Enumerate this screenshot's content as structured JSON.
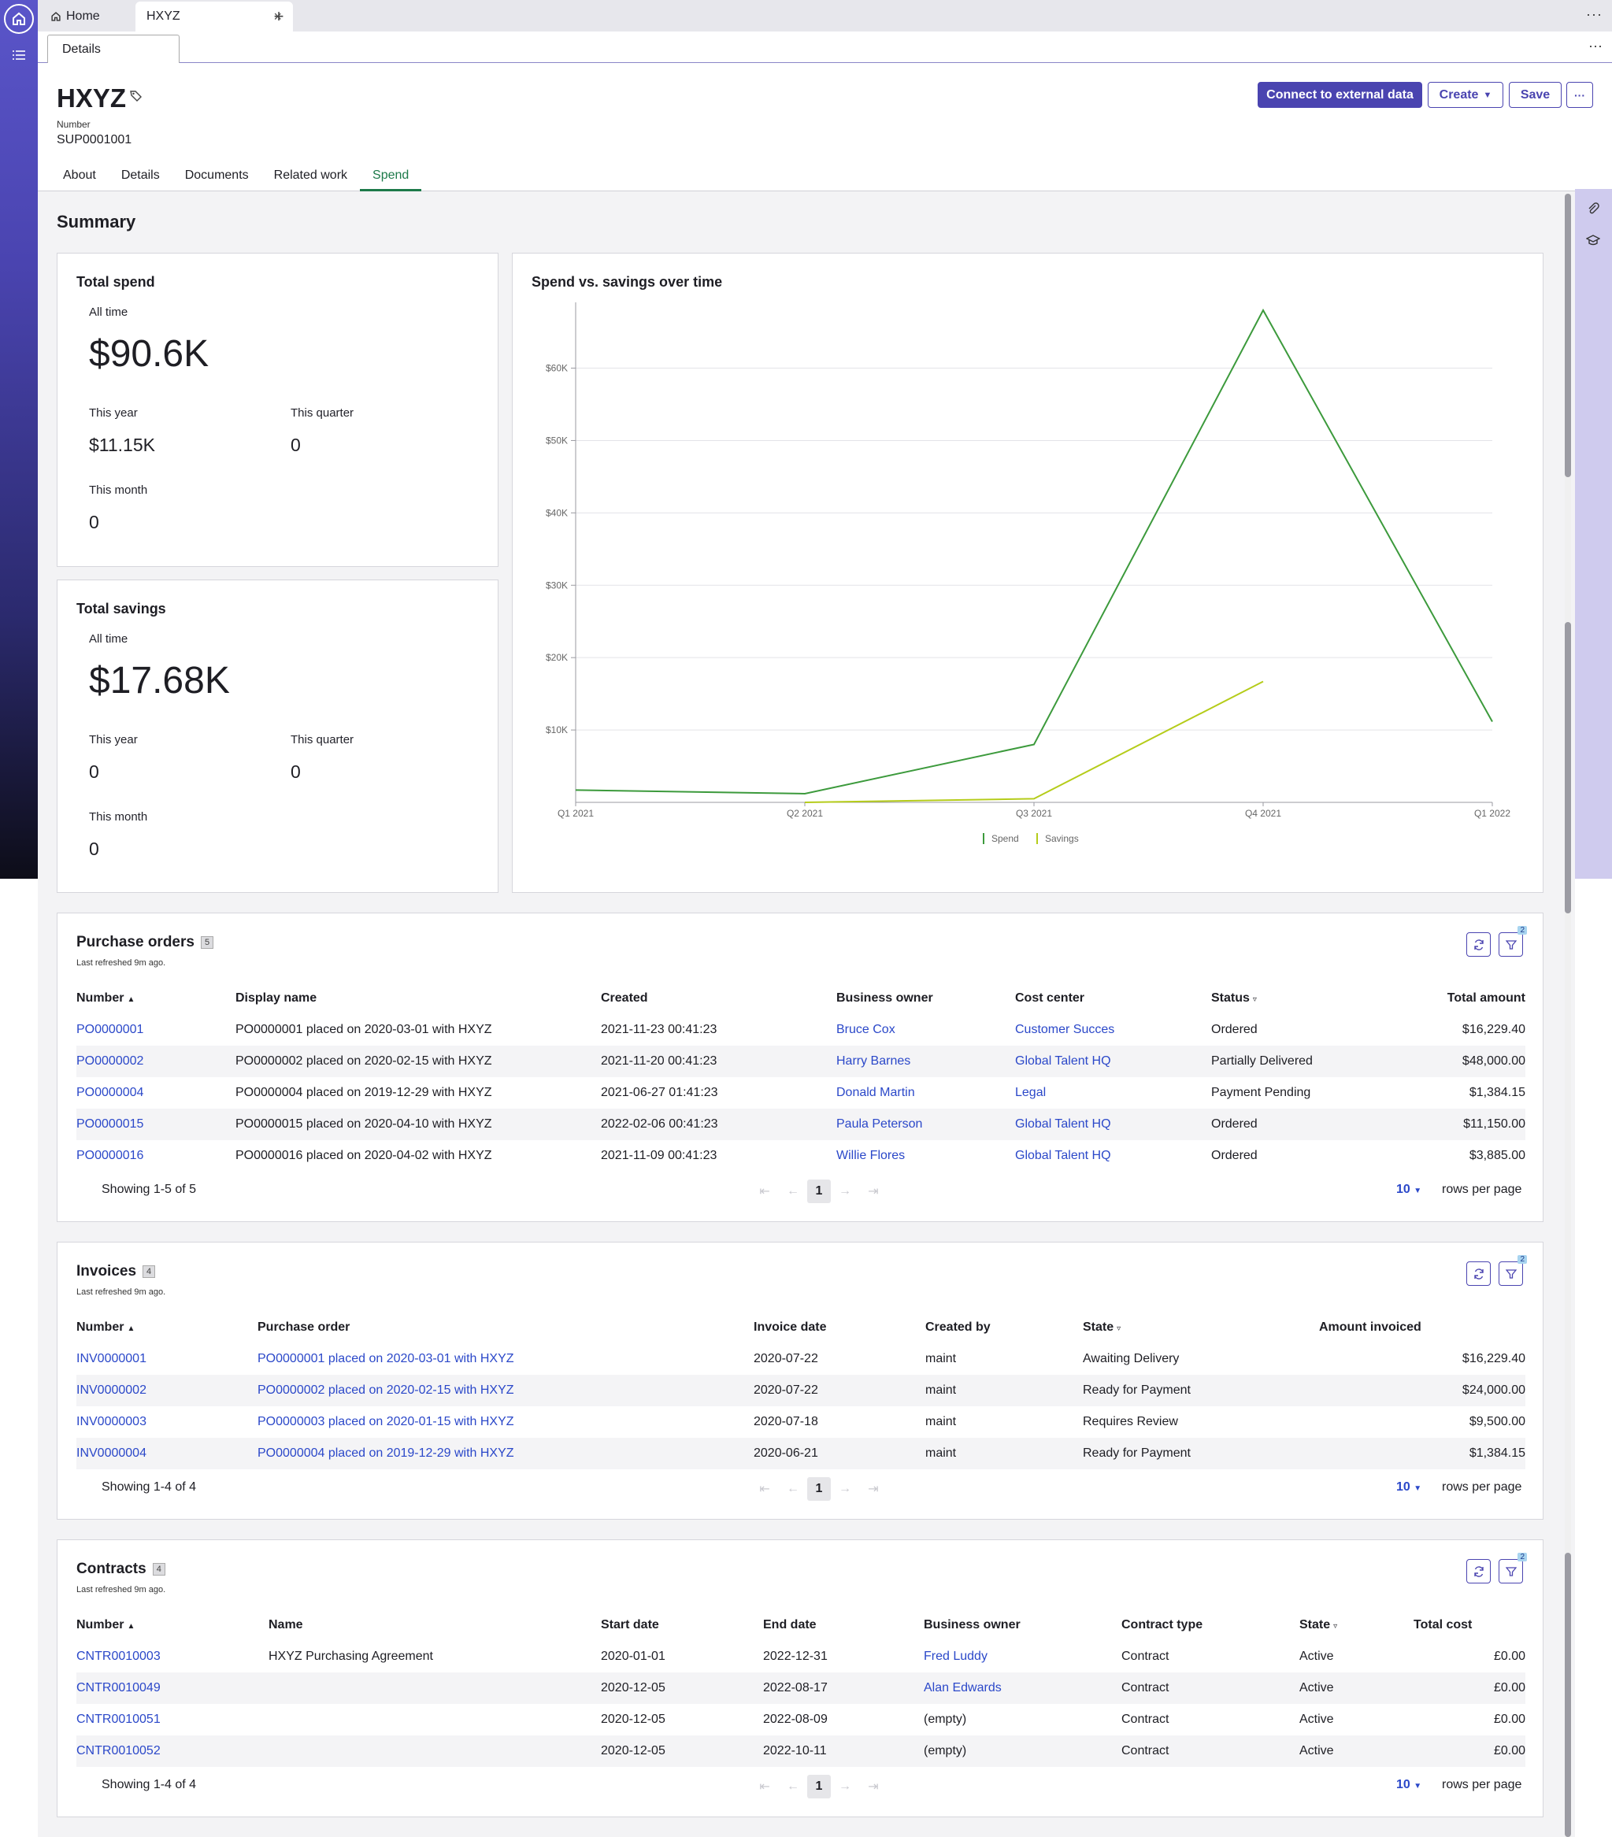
{
  "tabs": {
    "home": "Home",
    "record": "HXYZ",
    "close": "×",
    "add": "+"
  },
  "subtab": "Details",
  "header": {
    "title": "HXYZ",
    "number_label": "Number",
    "number_value": "SUP0001001",
    "buttons": {
      "connect": "Connect to external data",
      "create": "Create",
      "save": "Save",
      "more": "···"
    },
    "page_tabs": [
      "About",
      "Details",
      "Documents",
      "Related work",
      "Spend"
    ]
  },
  "summary_title": "Summary",
  "total_spend": {
    "title": "Total spend",
    "all_time_label": "All time",
    "all_time": "$90.6K",
    "this_year_label": "This year",
    "this_year": "$11.15K",
    "this_quarter_label": "This quarter",
    "this_quarter": "0",
    "this_month_label": "This month",
    "this_month": "0"
  },
  "total_savings": {
    "title": "Total savings",
    "all_time_label": "All time",
    "all_time": "$17.68K",
    "this_year_label": "This year",
    "this_year": "0",
    "this_quarter_label": "This quarter",
    "this_quarter": "0",
    "this_month_label": "This month",
    "this_month": "0"
  },
  "chart_data": {
    "type": "line",
    "title": "Spend vs. savings over time",
    "categories": [
      "Q1 2021",
      "Q2 2021",
      "Q3 2021",
      "Q4 2021",
      "Q1 2022"
    ],
    "y_ticks": [
      "$10K",
      "$20K",
      "$30K",
      "$40K",
      "$50K",
      "$60K"
    ],
    "ylim": [
      0,
      68000
    ],
    "series": [
      {
        "name": "Spend",
        "color": "#3c9a3c",
        "values": [
          1700,
          1200,
          8000,
          68000,
          11150
        ]
      },
      {
        "name": "Savings",
        "color": "#b5cc1a",
        "values": [
          null,
          0,
          500,
          16700,
          null
        ]
      }
    ],
    "legend": "bottom"
  },
  "purchase_orders": {
    "title": "Purchase orders",
    "count": "5",
    "refreshed": "Last refreshed 9m ago.",
    "filter_count": "2",
    "columns": [
      "Number",
      "Display name",
      "Created",
      "Business owner",
      "Cost center",
      "Status",
      "Total amount"
    ],
    "rows": [
      [
        "PO0000001",
        "PO0000001 placed on 2020-03-01 with HXYZ",
        "2021-11-23 00:41:23",
        "Bruce Cox",
        "Customer Succes",
        "Ordered",
        "$16,229.40"
      ],
      [
        "PO0000002",
        "PO0000002 placed on 2020-02-15 with HXYZ",
        "2021-11-20 00:41:23",
        "Harry Barnes",
        "Global Talent HQ",
        "Partially Delivered",
        "$48,000.00"
      ],
      [
        "PO0000004",
        "PO0000004 placed on 2019-12-29 with HXYZ",
        "2021-06-27 01:41:23",
        "Donald Martin",
        "Legal",
        "Payment Pending",
        "$1,384.15"
      ],
      [
        "PO0000015",
        "PO0000015 placed on 2020-04-10 with HXYZ",
        "2022-02-06 00:41:23",
        "Paula Peterson",
        "Global Talent HQ",
        "Ordered",
        "$11,150.00"
      ],
      [
        "PO0000016",
        "PO0000016 placed on 2020-04-02 with HXYZ",
        "2021-11-09 00:41:23",
        "Willie Flores",
        "Global Talent HQ",
        "Ordered",
        "$3,885.00"
      ]
    ],
    "showing": "Showing 1-5 of 5",
    "page": "1",
    "rows_per_page": "10",
    "rows_per_page_label": "rows per page"
  },
  "invoices": {
    "title": "Invoices",
    "count": "4",
    "refreshed": "Last refreshed 9m ago.",
    "filter_count": "2",
    "columns": [
      "Number",
      "Purchase order",
      "Invoice date",
      "Created by",
      "State",
      "Amount invoiced"
    ],
    "rows": [
      [
        "INV0000001",
        "PO0000001 placed on 2020-03-01 with HXYZ",
        "2020-07-22",
        "maint",
        "Awaiting Delivery",
        "$16,229.40"
      ],
      [
        "INV0000002",
        "PO0000002 placed on 2020-02-15 with HXYZ",
        "2020-07-22",
        "maint",
        "Ready for Payment",
        "$24,000.00"
      ],
      [
        "INV0000003",
        "PO0000003 placed on 2020-01-15 with HXYZ",
        "2020-07-18",
        "maint",
        "Requires Review",
        "$9,500.00"
      ],
      [
        "INV0000004",
        "PO0000004 placed on 2019-12-29 with HXYZ",
        "2020-06-21",
        "maint",
        "Ready for Payment",
        "$1,384.15"
      ]
    ],
    "showing": "Showing 1-4 of 4",
    "page": "1",
    "rows_per_page": "10",
    "rows_per_page_label": "rows per page"
  },
  "contracts": {
    "title": "Contracts",
    "count": "4",
    "refreshed": "Last refreshed 9m ago.",
    "filter_count": "2",
    "columns": [
      "Number",
      "Name",
      "Start date",
      "End date",
      "Business owner",
      "Contract type",
      "State",
      "Total cost"
    ],
    "rows": [
      [
        "CNTR0010003",
        "HXYZ Purchasing Agreement",
        "2020-01-01",
        "2022-12-31",
        "Fred Luddy",
        "Contract",
        "Active",
        "£0.00"
      ],
      [
        "CNTR0010049",
        "",
        "2020-12-05",
        "2022-08-17",
        "Alan Edwards",
        "Contract",
        "Active",
        "£0.00"
      ],
      [
        "CNTR0010051",
        "",
        "2020-12-05",
        "2022-08-09",
        "(empty)",
        "Contract",
        "Active",
        "£0.00"
      ],
      [
        "CNTR0010052",
        "",
        "2020-12-05",
        "2022-10-11",
        "(empty)",
        "Contract",
        "Active",
        "£0.00"
      ]
    ],
    "showing": "Showing 1-4 of 4",
    "page": "1",
    "rows_per_page": "10",
    "rows_per_page_label": "rows per page"
  }
}
